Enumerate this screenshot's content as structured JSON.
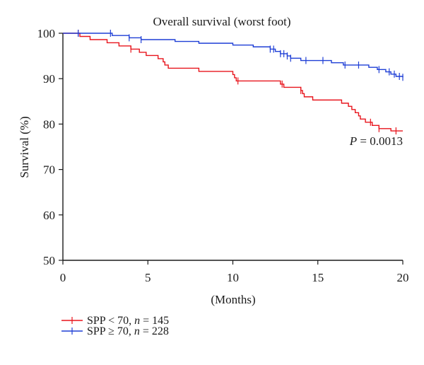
{
  "chart_data": {
    "type": "line",
    "subtype": "kaplan-meier step",
    "title": "Overall survival (worst foot)",
    "xlabel": "(Months)",
    "ylabel": "Survival (%)",
    "xlim": [
      0,
      20
    ],
    "ylim": [
      50,
      100
    ],
    "xticks": [
      0,
      5,
      10,
      15,
      20
    ],
    "yticks": [
      50,
      60,
      70,
      80,
      90,
      100
    ],
    "grid": false,
    "annotation": {
      "p_label": "P",
      "p_value": " = 0.0013",
      "position": "right, below red curve"
    },
    "legend_position": "bottom-left",
    "series": [
      {
        "name_parts": [
          "SPP < 70, ",
          "n",
          " = 145"
        ],
        "color": "#e8141c",
        "steps": [
          [
            0,
            100
          ],
          [
            1,
            99.3
          ],
          [
            1.6,
            98.6
          ],
          [
            2.6,
            97.9
          ],
          [
            3.3,
            97.2
          ],
          [
            4.0,
            96.5
          ],
          [
            4.5,
            95.8
          ],
          [
            4.9,
            95.1
          ],
          [
            5.6,
            94.4
          ],
          [
            5.9,
            93.7
          ],
          [
            6.0,
            93.0
          ],
          [
            6.2,
            92.3
          ],
          [
            8.0,
            91.6
          ],
          [
            10.0,
            90.9
          ],
          [
            10.1,
            90.2
          ],
          [
            10.2,
            89.5
          ],
          [
            12.8,
            88.8
          ],
          [
            13.0,
            88.1
          ],
          [
            14.0,
            87.4
          ],
          [
            14.1,
            86.7
          ],
          [
            14.2,
            86.0
          ],
          [
            14.7,
            85.3
          ],
          [
            16.4,
            84.6
          ],
          [
            16.8,
            83.9
          ],
          [
            17.0,
            83.2
          ],
          [
            17.2,
            82.5
          ],
          [
            17.4,
            81.8
          ],
          [
            17.5,
            81.1
          ],
          [
            17.8,
            80.4
          ],
          [
            18.2,
            79.7
          ],
          [
            18.6,
            79.0
          ],
          [
            19.3,
            78.5
          ],
          [
            20,
            78.5
          ]
        ],
        "censor_x": [
          0.9,
          4.0,
          10.3,
          12.9,
          14.0,
          18.1,
          18.6,
          19.6
        ]
      },
      {
        "name_parts": [
          "SPP ≥ 70, ",
          "n",
          " = 228"
        ],
        "color": "#1f3fd6",
        "steps": [
          [
            0,
            100
          ],
          [
            2.9,
            99.5
          ],
          [
            3.9,
            99.0
          ],
          [
            4.6,
            98.6
          ],
          [
            6.6,
            98.2
          ],
          [
            8.0,
            97.8
          ],
          [
            10.0,
            97.4
          ],
          [
            11.2,
            97.0
          ],
          [
            12.2,
            96.5
          ],
          [
            12.5,
            96.0
          ],
          [
            12.8,
            95.5
          ],
          [
            13.2,
            95.0
          ],
          [
            13.4,
            94.5
          ],
          [
            14.0,
            94.0
          ],
          [
            15.8,
            93.5
          ],
          [
            16.5,
            93.0
          ],
          [
            18.0,
            92.5
          ],
          [
            18.5,
            92.0
          ],
          [
            19.0,
            91.5
          ],
          [
            19.3,
            91.0
          ],
          [
            19.6,
            90.5
          ],
          [
            20,
            90.3
          ]
        ],
        "censor_x": [
          0.9,
          2.8,
          3.9,
          4.6,
          12.2,
          12.4,
          12.8,
          13.0,
          13.2,
          13.4,
          14.3,
          15.3,
          16.6,
          17.4,
          18.6,
          19.2,
          19.5,
          19.8,
          20.0
        ]
      }
    ]
  }
}
